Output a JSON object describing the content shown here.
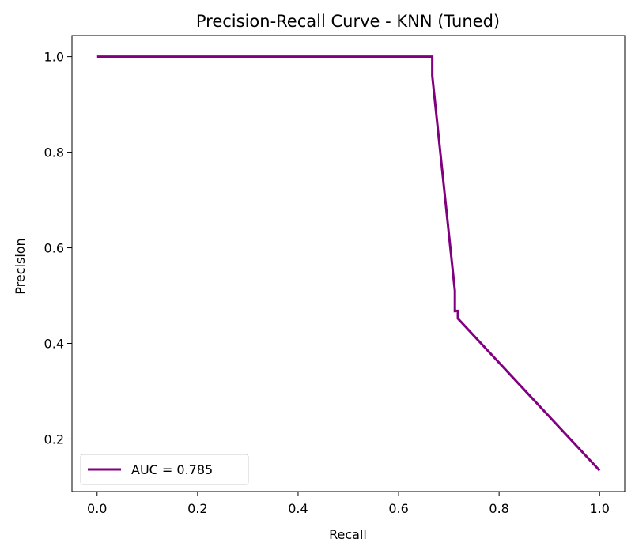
{
  "chart_data": {
    "type": "line",
    "title": "Precision-Recall Curve - KNN (Tuned)",
    "xlabel": "Recall",
    "ylabel": "Precision",
    "xlim": [
      -0.05,
      1.05
    ],
    "ylim": [
      0.09,
      1.044
    ],
    "xticks": [
      0.0,
      0.2,
      0.4,
      0.6,
      0.8,
      1.0
    ],
    "xtick_labels": [
      "0.0",
      "0.2",
      "0.4",
      "0.6",
      "0.8",
      "1.0"
    ],
    "yticks": [
      0.2,
      0.4,
      0.6,
      0.8,
      1.0
    ],
    "ytick_labels": [
      "0.2",
      "0.4",
      "0.6",
      "0.8",
      "1.0"
    ],
    "grid": false,
    "legend_position": "lower-left",
    "series": [
      {
        "name": "AUC = 0.785",
        "color": "#800080",
        "x": [
          0.0,
          0.667,
          0.667,
          0.667,
          0.712,
          0.712,
          0.712,
          0.718,
          0.718,
          1.0
        ],
        "y": [
          1.0,
          1.0,
          0.985,
          0.96,
          0.51,
          0.465,
          0.468,
          0.468,
          0.452,
          0.134
        ]
      }
    ]
  }
}
